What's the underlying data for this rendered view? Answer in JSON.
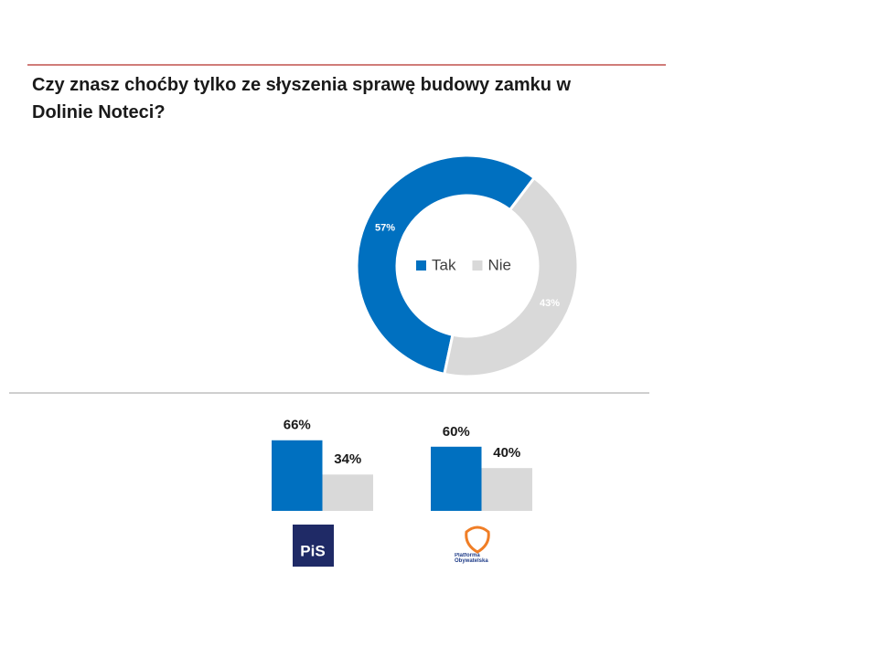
{
  "chart_data": [
    {
      "type": "donut",
      "title": "Czy znasz choćby tylko ze słyszenia sprawę budowy zamku w Dolinie Noteci?",
      "categories": [
        "Tak",
        "Nie"
      ],
      "values": [
        57,
        43
      ],
      "value_labels": [
        "57%",
        "43%"
      ],
      "colors": [
        "#0070c0",
        "#d9d9d9"
      ],
      "legend": "center"
    },
    {
      "type": "bar",
      "label": "PiS",
      "categories": [
        null,
        null
      ],
      "values": [
        66,
        34
      ],
      "value_labels": [
        "66%",
        "34%"
      ],
      "colors": [
        "#0070c0",
        "#d9d9d9"
      ]
    },
    {
      "type": "bar",
      "label": "Platforma Obywatelska",
      "categories": [
        null,
        null
      ],
      "values": [
        60,
        40
      ],
      "value_labels": [
        "60%",
        "40%"
      ],
      "colors": [
        "#0070c0",
        "#d9d9d9"
      ]
    }
  ]
}
